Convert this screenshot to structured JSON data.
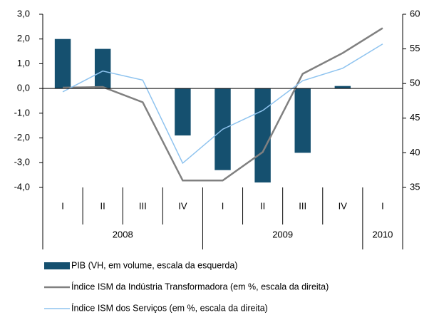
{
  "chart_data": {
    "type": "bar",
    "category_groups": [
      {
        "label": "2008",
        "categories": [
          "I",
          "II",
          "III",
          "IV"
        ]
      },
      {
        "label": "2009",
        "categories": [
          "I",
          "II",
          "III",
          "IV"
        ]
      },
      {
        "label": "2010",
        "categories": [
          "I"
        ]
      }
    ],
    "series": [
      {
        "name": "PIB (VH, em volume, escala da esquerda)",
        "type": "bar",
        "color": "#15506f",
        "values": [
          2.0,
          1.6,
          0.0,
          -1.9,
          -3.3,
          -3.8,
          -2.6,
          0.1,
          null
        ]
      },
      {
        "name": "Índice ISM da Indústria Transformadora (em %, escala da direita)",
        "type": "line",
        "axis": "y2",
        "color": "#808080",
        "values": [
          49.4,
          49.5,
          47.3,
          36.0,
          36.0,
          40.1,
          51.4,
          54.4,
          58.0
        ]
      },
      {
        "name": "Índice ISM dos Serviços (em %, escala da direita)",
        "type": "line",
        "axis": "y2",
        "color": "#8ec3ef",
        "values": [
          48.8,
          51.8,
          50.5,
          38.5,
          43.4,
          46.1,
          50.4,
          52.2,
          55.7
        ]
      }
    ],
    "ylim": [
      -4,
      3
    ],
    "yticks": [
      {
        "value": 3,
        "label": "3,0"
      },
      {
        "value": 2,
        "label": "2,0"
      },
      {
        "value": 1,
        "label": "1,0"
      },
      {
        "value": 0,
        "label": "0,0"
      },
      {
        "value": -1,
        "label": "-1,0"
      },
      {
        "value": -2,
        "label": "-2,0"
      },
      {
        "value": -3,
        "label": "-3,0"
      },
      {
        "value": -4,
        "label": "-4,0"
      }
    ],
    "y2lim": [
      35,
      60
    ],
    "y2ticks": [
      60,
      55,
      50,
      45,
      40,
      35
    ],
    "legend": "bottom"
  }
}
